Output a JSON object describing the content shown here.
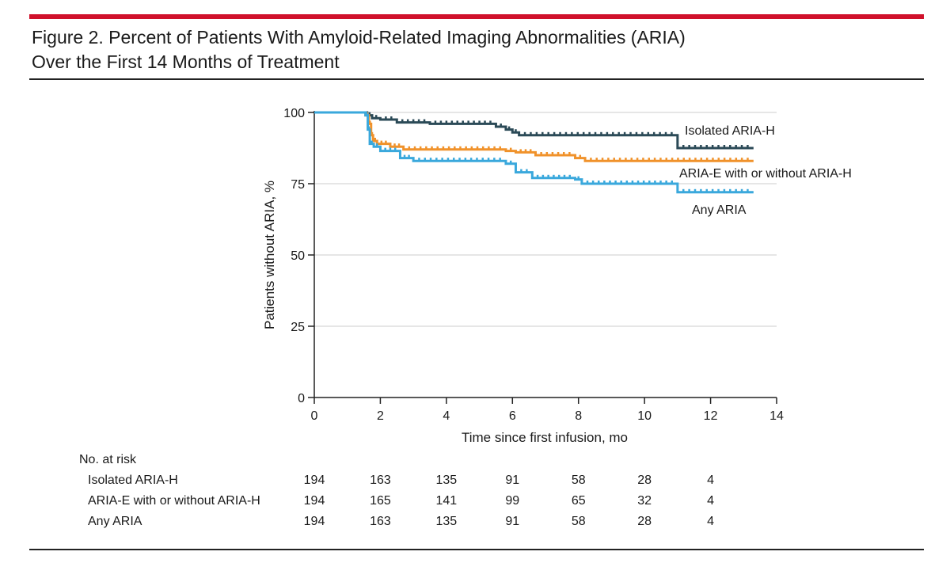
{
  "figure": {
    "title_line1": "Figure 2. Percent of Patients With Amyloid-Related Imaging Abnormalities (ARIA)",
    "title_line2": "Over the First 14 Months of Treatment"
  },
  "colors": {
    "accent_rule": "#d0112b",
    "isolated_aria_h": "#2b4a57",
    "aria_e": "#f0922b",
    "any_aria": "#3aa8dc",
    "grid": "#cccccc"
  },
  "chart_data": {
    "type": "line",
    "subtype": "kaplan-meier step curve",
    "title": "Percent of Patients With Amyloid-Related Imaging Abnormalities (ARIA) Over the First 14 Months of Treatment",
    "xlabel": "Time since first infusion, mo",
    "ylabel": "Patients without ARIA, %",
    "xlim": [
      0,
      14
    ],
    "ylim": [
      0,
      100
    ],
    "xticks": [
      0,
      2,
      4,
      6,
      8,
      10,
      12,
      14
    ],
    "yticks": [
      0,
      25,
      50,
      75,
      100
    ],
    "grid": "horizontal",
    "legend_placement": "inline labels at right end of curves",
    "series": [
      {
        "name": "Isolated ARIA-H",
        "color": "#2b4a57",
        "steps": [
          [
            0,
            100
          ],
          [
            1.6,
            99
          ],
          [
            1.75,
            98
          ],
          [
            2.0,
            97.5
          ],
          [
            2.5,
            96.5
          ],
          [
            3.5,
            96
          ],
          [
            5.5,
            95
          ],
          [
            5.8,
            94
          ],
          [
            6.0,
            93
          ],
          [
            6.2,
            92
          ],
          [
            11.0,
            87.5
          ],
          [
            13.3,
            87.5
          ]
        ]
      },
      {
        "name": "ARIA-E with or without ARIA-H",
        "color": "#f0922b",
        "steps": [
          [
            0,
            100
          ],
          [
            1.55,
            99
          ],
          [
            1.65,
            96
          ],
          [
            1.72,
            92
          ],
          [
            1.78,
            90
          ],
          [
            1.9,
            89
          ],
          [
            2.3,
            88
          ],
          [
            2.7,
            87
          ],
          [
            5.8,
            86.5
          ],
          [
            6.1,
            86
          ],
          [
            6.7,
            85
          ],
          [
            7.9,
            84
          ],
          [
            8.2,
            83
          ],
          [
            13.3,
            83
          ]
        ]
      },
      {
        "name": "Any ARIA",
        "color": "#3aa8dc",
        "steps": [
          [
            0,
            100
          ],
          [
            1.55,
            99
          ],
          [
            1.62,
            94
          ],
          [
            1.68,
            89
          ],
          [
            1.8,
            88
          ],
          [
            2.0,
            86.5
          ],
          [
            2.6,
            84
          ],
          [
            3.0,
            83
          ],
          [
            5.8,
            82
          ],
          [
            6.1,
            79
          ],
          [
            6.6,
            77
          ],
          [
            7.9,
            76.5
          ],
          [
            8.1,
            75
          ],
          [
            11.0,
            72
          ],
          [
            13.3,
            72
          ]
        ]
      }
    ],
    "labels": {
      "isolated": "Isolated ARIA-H",
      "aria_e": "ARIA-E with or without ARIA-H",
      "any": "Any ARIA"
    }
  },
  "risk_table": {
    "header": "No. at risk",
    "rows": [
      {
        "label": "Isolated ARIA-H",
        "values": [
          "194",
          "163",
          "135",
          "91",
          "58",
          "28",
          "4"
        ]
      },
      {
        "label": "ARIA-E with or without ARIA-H",
        "values": [
          "194",
          "165",
          "141",
          "99",
          "65",
          "32",
          "4"
        ]
      },
      {
        "label": "Any ARIA",
        "values": [
          "194",
          "163",
          "135",
          "91",
          "58",
          "28",
          "4"
        ]
      }
    ]
  }
}
